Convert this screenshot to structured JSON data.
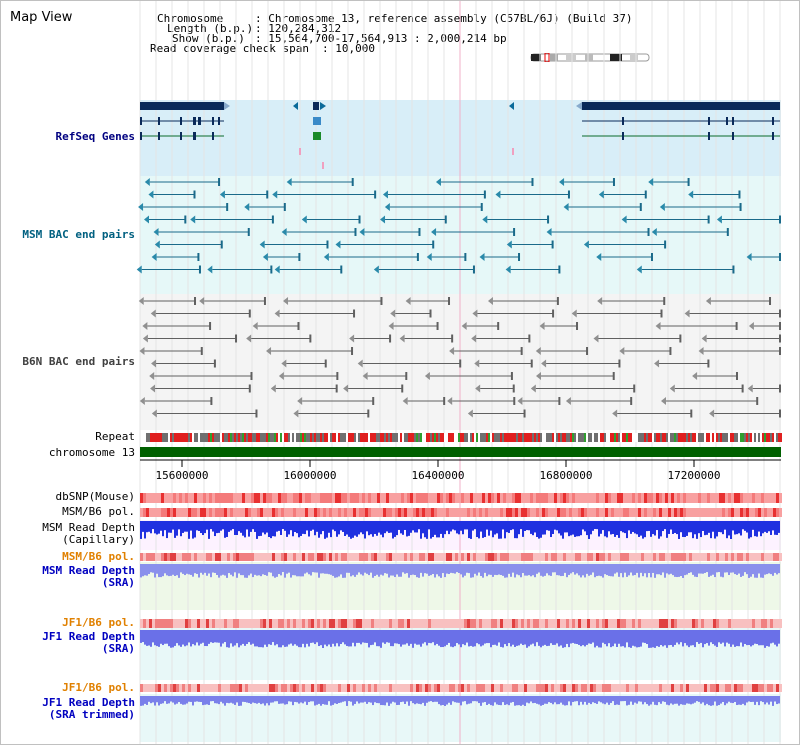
{
  "page_title": "Map View",
  "info": {
    "chromosome_label": "Chromosome",
    "chromosome_value": ": Chromosome 13, reference assembly (C57BL/6J) (Build 37)",
    "length_label": "Length (b.p.)",
    "length_value": ": 120,284,312",
    "show_label": "Show (b.p.)",
    "show_value": ": 15,564,700-17,564,913 : 2,000,214 bp",
    "coverage_label": "Read coverage check span",
    "coverage_value": ": 10,000"
  },
  "tracks": {
    "refseq": "RefSeq Genes",
    "msm_bac": "MSM BAC end pairs",
    "b6n_bac": "B6N BAC end pairs",
    "repeat": "Repeat",
    "chromosome": "chromosome 13",
    "dbsnp": "dbSNP(Mouse)",
    "msm_b6_pol_1": "MSM/B6 pol.",
    "msm_read_depth_cap_1": "MSM Read Depth",
    "msm_read_depth_cap_2": "(Capillary)",
    "msm_b6_pol_2": "MSM/B6 pol.",
    "msm_read_depth_sra_1": "MSM Read Depth",
    "msm_read_depth_sra_2": "(SRA)",
    "jf1_b6_pol_1": "JF1/B6 pol.",
    "jf1_read_depth_sra_1": "JF1 Read Depth",
    "jf1_read_depth_sra_2": "(SRA)",
    "jf1_b6_pol_2": "JF1/B6 pol.",
    "jf1_read_depth_trim_1": "JF1 Read Depth",
    "jf1_read_depth_trim_2": "(SRA trimmed)"
  },
  "axis_ticks": [
    "15600000",
    "16000000",
    "16400000",
    "16800000",
    "17200000"
  ],
  "colors": {
    "refseq_label": "#000080",
    "msm_label": "#006080",
    "b6n_label": "#404040",
    "orange_label": "#e08000",
    "blue_label": "#0000c0",
    "refseq_bg": "#d8eef8",
    "msm_bg": "#e6f8f8",
    "depth_blue": "#2030e0",
    "chromosome_green": "#006000"
  }
}
